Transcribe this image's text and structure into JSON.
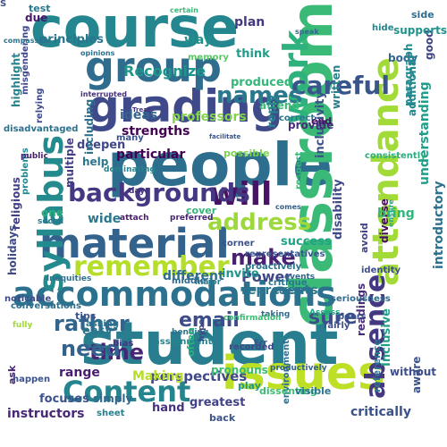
{
  "words": [
    {
      "text": "student",
      "color": "#287d8e"
    },
    {
      "text": "people",
      "color": "#2d6e8e"
    },
    {
      "text": "classroom",
      "color": "#3aba76"
    },
    {
      "text": "course",
      "color": "#24868e"
    },
    {
      "text": "issues",
      "color": "#bddf26"
    },
    {
      "text": "grading",
      "color": "#3e4a89"
    },
    {
      "text": "group",
      "color": "#2f6c8e"
    },
    {
      "text": "material",
      "color": "#33628d"
    },
    {
      "text": "accommodations",
      "color": "#2c718e"
    },
    {
      "text": "attendance",
      "color": "#a2da37"
    },
    {
      "text": "work",
      "color": "#2db27d"
    },
    {
      "text": "syllabus",
      "color": "#238a8d"
    },
    {
      "text": "Content",
      "color": "#25858e"
    },
    {
      "text": "absence",
      "color": "#453882"
    },
    {
      "text": "remember",
      "color": "#b5de2b"
    },
    {
      "text": "will",
      "color": "#471365"
    },
    {
      "text": "backgrounds",
      "color": "#453781"
    },
    {
      "text": "careful",
      "color": "#39568c"
    },
    {
      "text": "names",
      "color": "#2a788e"
    },
    {
      "text": "address",
      "color": "#9dd93b"
    },
    {
      "text": "make",
      "color": "#482173"
    },
    {
      "text": "rather",
      "color": "#32658e"
    },
    {
      "text": "email",
      "color": "#3d4d8a"
    },
    {
      "text": "time",
      "color": "#482576"
    },
    {
      "text": "need",
      "color": "#33638d"
    },
    {
      "text": "sure",
      "color": "#3c4f8a"
    },
    {
      "text": "Recognize",
      "color": "#1f968b"
    },
    {
      "text": "ideas",
      "color": "#32648e"
    },
    {
      "text": "strengths",
      "color": "#440154"
    },
    {
      "text": "professors",
      "color": "#84d44b"
    },
    {
      "text": "inclusivity",
      "color": "#3b518b"
    },
    {
      "text": "written",
      "color": "#27808e"
    },
    {
      "text": "attend",
      "color": "#3dbc74"
    },
    {
      "text": "Power",
      "color": "#3f4788"
    },
    {
      "text": "represents",
      "color": "#2a768e"
    },
    {
      "text": "Inclusive",
      "color": "#1fa088"
    },
    {
      "text": "introductory",
      "color": "#2c728e"
    },
    {
      "text": "disability",
      "color": "#3f4889"
    },
    {
      "text": "perspectives",
      "color": "#3f4889"
    },
    {
      "text": "instructors",
      "color": "#482878"
    },
    {
      "text": "principles",
      "color": "#2a768e"
    },
    {
      "text": "way",
      "color": "#21918c"
    },
    {
      "text": "plan",
      "color": "#453882"
    },
    {
      "text": "think",
      "color": "#1f9e89"
    },
    {
      "text": "produced",
      "color": "#35b779"
    },
    {
      "text": "reply",
      "color": "#26828e"
    },
    {
      "text": "provide",
      "color": "#472c7a"
    },
    {
      "text": "understanding",
      "color": "#1f9e89"
    },
    {
      "text": "particular",
      "color": "#440154"
    },
    {
      "text": "possible",
      "color": "#7ad151"
    },
    {
      "text": "wide",
      "color": "#2a788e"
    },
    {
      "text": "invite",
      "color": "#1f948c"
    },
    {
      "text": "success",
      "color": "#20a386"
    },
    {
      "text": "different",
      "color": "#2e6f8e"
    },
    {
      "text": "diverse",
      "color": "#470e61"
    },
    {
      "text": "readings",
      "color": "#472d7b"
    },
    {
      "text": "easy",
      "color": "#2a768e"
    },
    {
      "text": "tips",
      "color": "#3a538b"
    },
    {
      "text": "range",
      "color": "#481d6f"
    },
    {
      "text": "Making",
      "color": "#b8de29"
    },
    {
      "text": "simply",
      "color": "#31668e"
    },
    {
      "text": "focuses",
      "color": "#3b528b"
    },
    {
      "text": "greatest",
      "color": "#414287"
    },
    {
      "text": "critically",
      "color": "#3b518b"
    },
    {
      "text": "hand",
      "color": "#46327e"
    },
    {
      "text": "deepen",
      "color": "#3f4788"
    },
    {
      "text": "help",
      "color": "#2a768e"
    },
    {
      "text": "multiple",
      "color": "#423f85"
    },
    {
      "text": "religious",
      "color": "#433e85"
    },
    {
      "text": "one",
      "color": "#29af7f"
    },
    {
      "text": "holidays",
      "color": "#3e4989"
    },
    {
      "text": "ask",
      "color": "#482878"
    },
    {
      "text": "including",
      "color": "#2c728e"
    },
    {
      "text": "highlight",
      "color": "#25848e"
    },
    {
      "text": "due",
      "color": "#481769"
    },
    {
      "text": "test",
      "color": "#2a788e"
    },
    {
      "text": "body",
      "color": "#32658e"
    },
    {
      "text": "paragraph",
      "color": "#238a8d"
    },
    {
      "text": "additional",
      "color": "#24868e"
    },
    {
      "text": "bring",
      "color": "#31b57b"
    },
    {
      "text": "good",
      "color": "#404588"
    },
    {
      "text": "supports",
      "color": "#20938c"
    },
    {
      "text": "many",
      "color": "#3a548c"
    },
    {
      "text": "correct",
      "color": "#2a768e"
    },
    {
      "text": "end",
      "color": "#471365"
    },
    {
      "text": "side",
      "color": "#2e6e8e"
    },
    {
      "text": "hide",
      "color": "#24868e"
    },
    {
      "text": "memory",
      "color": "#5ac864"
    },
    {
      "text": "relying",
      "color": "#3e4989"
    },
    {
      "text": "misgendering",
      "color": "#3f4788"
    },
    {
      "text": "disadvantaged",
      "color": "#2c718e"
    },
    {
      "text": "problems",
      "color": "#24868e"
    },
    {
      "text": "public",
      "color": "#482071"
    },
    {
      "text": "compassion",
      "color": "#2b748e"
    },
    {
      "text": "opinions",
      "color": "#2c718e"
    },
    {
      "text": "speak",
      "color": "#31688e"
    },
    {
      "text": "certain",
      "color": "#38b977"
    },
    {
      "text": "interrupted",
      "color": "#472f7d"
    },
    {
      "text": "Treat",
      "color": "#463480"
    },
    {
      "text": "facilitate",
      "color": "#3a538b"
    },
    {
      "text": "respect",
      "color": "#34b679"
    },
    {
      "text": "consistently",
      "color": "#29af7f"
    },
    {
      "text": "dominating",
      "color": "#26828e"
    },
    {
      "text": "day",
      "color": "#46327e"
    },
    {
      "text": "cover",
      "color": "#35b779"
    },
    {
      "text": "attach",
      "color": "#481a6c"
    },
    {
      "text": "preferred",
      "color": "#482475"
    },
    {
      "text": "social",
      "color": "#2a768e"
    },
    {
      "text": "comes",
      "color": "#34618d"
    },
    {
      "text": "corner",
      "color": "#3b518b"
    },
    {
      "text": "representatives",
      "color": "#39568c"
    },
    {
      "text": "avoid",
      "color": "#404588"
    },
    {
      "text": "ensure",
      "color": "#24aa83"
    },
    {
      "text": "proactively",
      "color": "#2b748e"
    },
    {
      "text": "identity",
      "color": "#3d4e8a"
    },
    {
      "text": "critique",
      "color": "#2a788e"
    },
    {
      "text": "major",
      "color": "#27808e"
    },
    {
      "text": "middle",
      "color": "#306a8e"
    },
    {
      "text": "inequities",
      "color": "#2d718e"
    },
    {
      "text": "noticable",
      "color": "#3e4a89"
    },
    {
      "text": "events",
      "color": "#32658e"
    },
    {
      "text": "life",
      "color": "#2d6f8e"
    },
    {
      "text": "seriousness",
      "color": "#2f6b8e"
    },
    {
      "text": "peers",
      "color": "#3b528b"
    },
    {
      "text": "fairly",
      "color": "#3d4e8a"
    },
    {
      "text": "Assess",
      "color": "#21a585"
    },
    {
      "text": "taking",
      "color": "#306a8e"
    },
    {
      "text": "confirmation",
      "color": "#3dbc74"
    },
    {
      "text": "asking",
      "color": "#2a768e"
    },
    {
      "text": "bending",
      "color": "#2c728e"
    },
    {
      "text": "environment",
      "color": "#2e6e8e"
    },
    {
      "text": "conversations",
      "color": "#2e6f8e"
    },
    {
      "text": "recorded",
      "color": "#3e4a89"
    },
    {
      "text": "Err",
      "color": "#3b528b"
    },
    {
      "text": "fully",
      "color": "#a2da37"
    },
    {
      "text": "happen",
      "color": "#3b528b"
    },
    {
      "text": "bias",
      "color": "#463480"
    },
    {
      "text": "assignment",
      "color": "#25858e"
    },
    {
      "text": "often",
      "color": "#2ab07f"
    },
    {
      "text": "hype",
      "color": "#404588"
    },
    {
      "text": "productively",
      "color": "#33628d"
    },
    {
      "text": "dissenting",
      "color": "#3dbc74"
    },
    {
      "text": "play",
      "color": "#1f988b"
    },
    {
      "text": "visible",
      "color": "#2b748e"
    },
    {
      "text": "reference",
      "color": "#2a768e"
    },
    {
      "text": "without",
      "color": "#3d4e8a"
    },
    {
      "text": "aware",
      "color": "#3b528b"
    },
    {
      "text": "sheet",
      "color": "#26818e"
    },
    {
      "text": "back",
      "color": "#3a538b"
    },
    {
      "text": "pronouns",
      "color": "#3dbc74"
    },
    {
      "text": "S",
      "color": "#3b518b"
    }
  ]
}
